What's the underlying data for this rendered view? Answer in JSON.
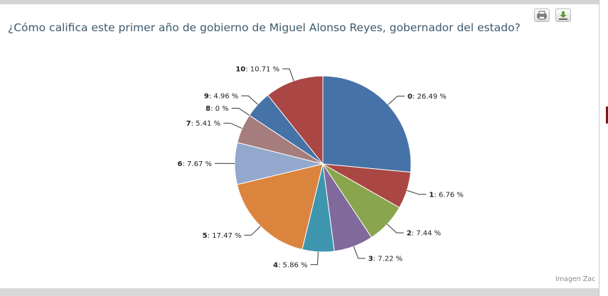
{
  "chart_data": {
    "type": "pie",
    "title": "¿Cómo califica este primer año de gobierno de Miguel Alonso Reyes, gobernador del estado?",
    "slices": [
      {
        "label": "0",
        "value": 26.49,
        "display": "26.49 %",
        "color": "#4572A7"
      },
      {
        "label": "1",
        "value": 6.76,
        "display": "6.76 %",
        "color": "#AA4643"
      },
      {
        "label": "2",
        "value": 7.44,
        "display": "7.44 %",
        "color": "#89A54E"
      },
      {
        "label": "3",
        "value": 7.22,
        "display": "7.22 %",
        "color": "#80699B"
      },
      {
        "label": "4",
        "value": 5.86,
        "display": "5.86 %",
        "color": "#3D96AE"
      },
      {
        "label": "5",
        "value": 17.47,
        "display": "17.47 %",
        "color": "#DB843D"
      },
      {
        "label": "6",
        "value": 7.67,
        "display": "7.67 %",
        "color": "#92A8CD"
      },
      {
        "label": "7",
        "value": 5.41,
        "display": "5.41 %",
        "color": "#A47D7C"
      },
      {
        "label": "8",
        "value": 0,
        "display": "0 %",
        "color": "#B5CA92"
      },
      {
        "label": "9",
        "value": 4.96,
        "display": "4.96 %",
        "color": "#4572A7"
      },
      {
        "label": "10",
        "value": 10.71,
        "display": "10.71 %",
        "color": "#AA4643"
      }
    ]
  },
  "toolbar": {
    "print_icon": "printer-icon",
    "export_icon": "download-icon"
  },
  "credit": "Imagen Zac"
}
